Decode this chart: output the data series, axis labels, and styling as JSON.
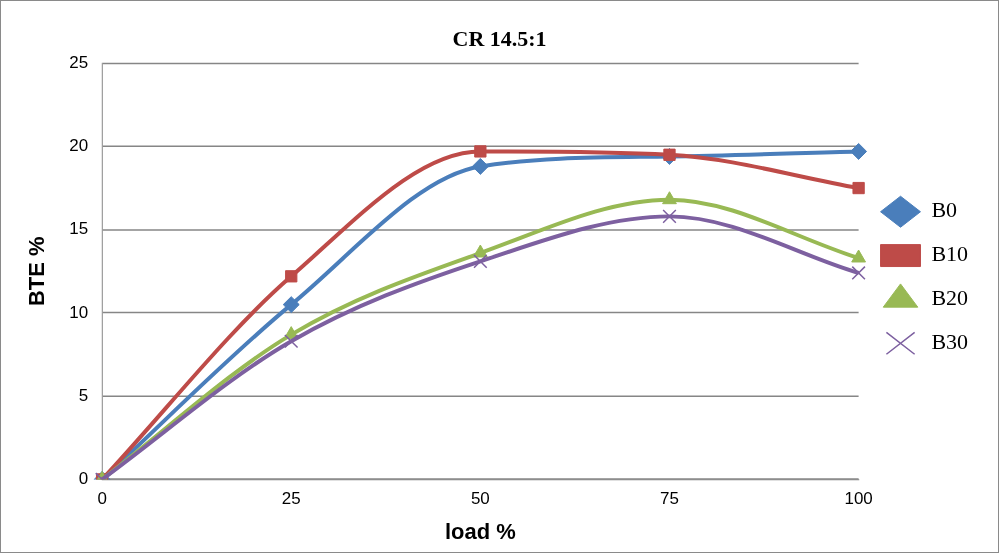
{
  "chart_data": {
    "type": "line",
    "title": "CR 14.5:1",
    "xlabel": "load %",
    "ylabel": "BTE %",
    "categories": [
      "0",
      "25",
      "50",
      "75",
      "100"
    ],
    "ylim": [
      0,
      25
    ],
    "yticks": [
      0,
      5,
      10,
      15,
      20,
      25
    ],
    "grid": "y",
    "legend": "right",
    "series": [
      {
        "name": "B0",
        "color": "#4a7ebb",
        "marker": "diamond",
        "values": [
          0,
          10.5,
          18.8,
          19.4,
          19.7
        ]
      },
      {
        "name": "B10",
        "color": "#be4b48",
        "marker": "square",
        "values": [
          0,
          12.2,
          19.7,
          19.5,
          17.5
        ]
      },
      {
        "name": "B20",
        "color": "#98b954",
        "marker": "triangle",
        "values": [
          0,
          8.7,
          13.6,
          16.8,
          13.3
        ]
      },
      {
        "name": "B30",
        "color": "#7d60a0",
        "marker": "cross",
        "values": [
          0,
          8.3,
          13.1,
          15.8,
          12.4
        ]
      }
    ]
  }
}
